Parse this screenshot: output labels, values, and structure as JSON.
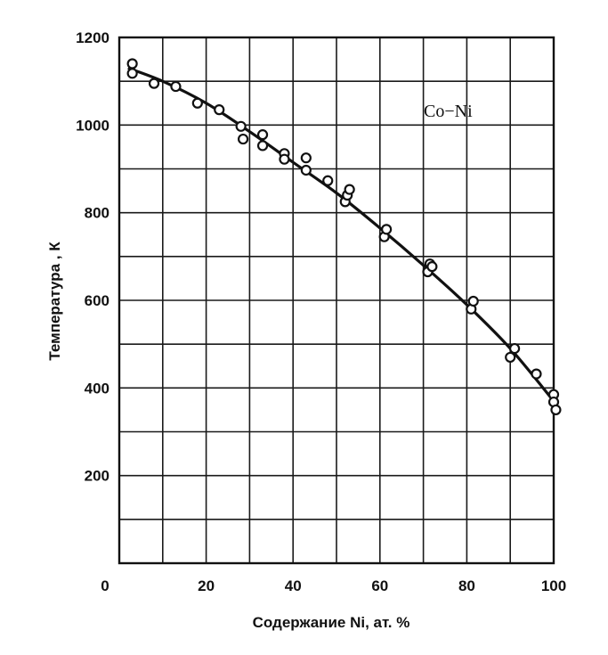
{
  "chart_data": {
    "type": "scatter",
    "annotation": "Co−Ni",
    "xlabel": "Содержание Ni, ат. %",
    "ylabel": "Температура , К",
    "xlim": [
      0,
      100
    ],
    "ylim": [
      0,
      1200
    ],
    "x_ticks": [
      "0",
      "20",
      "40",
      "60",
      "80",
      "100"
    ],
    "y_ticks": [
      "200",
      "400",
      "600",
      "800",
      "1000",
      "1200"
    ],
    "grid": true,
    "points": [
      {
        "x": 3,
        "y": 1140
      },
      {
        "x": 3,
        "y": 1118
      },
      {
        "x": 8,
        "y": 1095
      },
      {
        "x": 13,
        "y": 1088
      },
      {
        "x": 18,
        "y": 1050
      },
      {
        "x": 23,
        "y": 1035
      },
      {
        "x": 28,
        "y": 997
      },
      {
        "x": 28.5,
        "y": 968
      },
      {
        "x": 33,
        "y": 978
      },
      {
        "x": 33,
        "y": 953
      },
      {
        "x": 38,
        "y": 935
      },
      {
        "x": 38,
        "y": 922
      },
      {
        "x": 43,
        "y": 925
      },
      {
        "x": 43,
        "y": 897
      },
      {
        "x": 48,
        "y": 873
      },
      {
        "x": 52,
        "y": 825
      },
      {
        "x": 52.5,
        "y": 840
      },
      {
        "x": 53,
        "y": 853
      },
      {
        "x": 61,
        "y": 745
      },
      {
        "x": 61.5,
        "y": 762
      },
      {
        "x": 71,
        "y": 665
      },
      {
        "x": 71.5,
        "y": 683
      },
      {
        "x": 72,
        "y": 677
      },
      {
        "x": 81,
        "y": 580
      },
      {
        "x": 81.5,
        "y": 598
      },
      {
        "x": 90,
        "y": 470
      },
      {
        "x": 91,
        "y": 490
      },
      {
        "x": 96,
        "y": 432
      },
      {
        "x": 100,
        "y": 385
      },
      {
        "x": 100,
        "y": 368
      },
      {
        "x": 100.5,
        "y": 350
      }
    ],
    "fit_curve": [
      {
        "x": 2,
        "y": 1130
      },
      {
        "x": 10,
        "y": 1100
      },
      {
        "x": 20,
        "y": 1050
      },
      {
        "x": 30,
        "y": 985
      },
      {
        "x": 40,
        "y": 915
      },
      {
        "x": 50,
        "y": 845
      },
      {
        "x": 60,
        "y": 765
      },
      {
        "x": 70,
        "y": 680
      },
      {
        "x": 80,
        "y": 590
      },
      {
        "x": 90,
        "y": 490
      },
      {
        "x": 100,
        "y": 370
      }
    ]
  }
}
